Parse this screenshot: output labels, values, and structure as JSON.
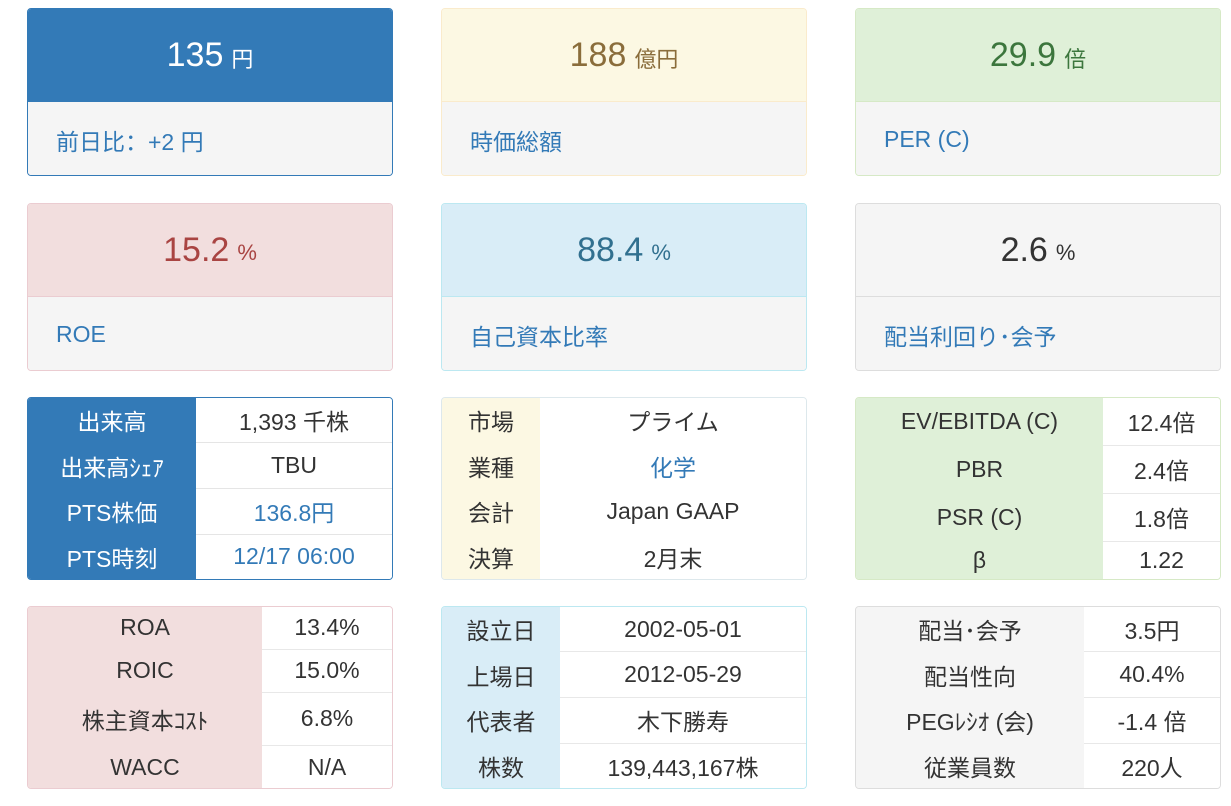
{
  "stats": [
    {
      "value": "135",
      "unit": "円",
      "label": "前日比：+2 円"
    },
    {
      "value": "188",
      "unit": "億円",
      "label": "時価総額"
    },
    {
      "value": "29.9",
      "unit": "倍",
      "label": "PER (C)"
    },
    {
      "value": "15.2",
      "unit": "%",
      "label": "ROE"
    },
    {
      "value": "88.4",
      "unit": "%",
      "label": "自己資本比率"
    },
    {
      "value": "2.6",
      "unit": "%",
      "label": "配当利回り･会予"
    }
  ],
  "trading": [
    {
      "key": "出来高",
      "value": "1,393 千株"
    },
    {
      "key": "出来高ｼｪｱ",
      "value": "TBU"
    },
    {
      "key": "PTS株価",
      "value": "136.8円"
    },
    {
      "key": "PTS時刻",
      "value": "12/17 06:00"
    }
  ],
  "company": [
    {
      "key": "市場",
      "value": "プライム"
    },
    {
      "key": "業種",
      "value": "化学"
    },
    {
      "key": "会計",
      "value": "Japan GAAP"
    },
    {
      "key": "決算",
      "value": "2月末"
    }
  ],
  "valuation": [
    {
      "key": "EV/EBITDA (C)",
      "value": "12.4倍"
    },
    {
      "key": "PBR",
      "value": "2.4倍"
    },
    {
      "key": "PSR (C)",
      "value": "1.8倍"
    },
    {
      "key": "β",
      "value": "1.22"
    }
  ],
  "returns": [
    {
      "key": "ROA",
      "value": "13.4%"
    },
    {
      "key": "ROIC",
      "value": "15.0%"
    },
    {
      "key": "株主資本ｺｽﾄ",
      "value": "6.8%"
    },
    {
      "key": "WACC",
      "value": "N/A"
    }
  ],
  "profile": [
    {
      "key": "設立日",
      "value": "2002-05-01"
    },
    {
      "key": "上場日",
      "value": "2012-05-29"
    },
    {
      "key": "代表者",
      "value": "木下勝寿"
    },
    {
      "key": "株数",
      "value": "139,443,167株"
    }
  ],
  "dividend": [
    {
      "key": "配当･会予",
      "value": "3.5円"
    },
    {
      "key": "配当性向",
      "value": "40.4%"
    },
    {
      "key": "PEGﾚｼｵ (会)",
      "value": "-1.4 倍"
    },
    {
      "key": "従業員数",
      "value": "220人"
    }
  ]
}
